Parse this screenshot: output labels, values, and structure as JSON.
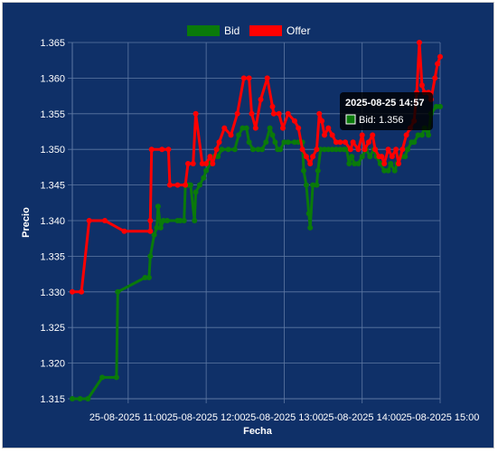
{
  "colors": {
    "background": "#0f3068",
    "grid": "#5e78a3",
    "bid": "#0a7a0a",
    "offer": "#ff0000",
    "text": "#ffffff"
  },
  "chart_data": {
    "type": "line",
    "title": "",
    "xlabel": "Fecha",
    "ylabel": "Precio",
    "grid": true,
    "legend_position": "top-center",
    "x_unit": "time HH:MM on 2025-08-25",
    "x_ticks": [
      "25-08-2025 11:00",
      "25-08-2025 12:00",
      "25-08-2025 13:00",
      "25-08-2025 14:00",
      "25-08-2025 15:00"
    ],
    "y_ticks": [
      "1.315",
      "1.320",
      "1.325",
      "1.330",
      "1.335",
      "1.340",
      "1.345",
      "1.350",
      "1.355",
      "1.360",
      "1.365"
    ],
    "xlim": [
      "10:17",
      "15:00"
    ],
    "ylim": [
      1.315,
      1.365
    ],
    "series": [
      {
        "name": "Bid",
        "color": "#0a7a0a",
        "points": [
          [
            "10:17",
            1.315
          ],
          [
            "10:23",
            1.315
          ],
          [
            "10:29",
            1.315
          ],
          [
            "10:40",
            1.318
          ],
          [
            "10:51",
            1.318
          ],
          [
            "10:52",
            1.33
          ],
          [
            "11:13",
            1.332
          ],
          [
            "11:16",
            1.332
          ],
          [
            "11:17",
            1.335
          ],
          [
            "11:20",
            1.338
          ],
          [
            "11:22",
            1.339
          ],
          [
            "11:23",
            1.342
          ],
          [
            "11:25",
            1.339
          ],
          [
            "11:27",
            1.34
          ],
          [
            "11:30",
            1.34
          ],
          [
            "11:38",
            1.34
          ],
          [
            "11:40",
            1.34
          ],
          [
            "11:43",
            1.34
          ],
          [
            "11:44",
            1.345
          ],
          [
            "11:46",
            1.345
          ],
          [
            "11:48",
            1.345
          ],
          [
            "11:51",
            1.34
          ],
          [
            "11:52",
            1.344
          ],
          [
            "11:55",
            1.345
          ],
          [
            "11:58",
            1.346
          ],
          [
            "12:00",
            1.347
          ],
          [
            "12:03",
            1.348
          ],
          [
            "12:06",
            1.349
          ],
          [
            "12:09",
            1.349
          ],
          [
            "12:12",
            1.35
          ],
          [
            "12:17",
            1.35
          ],
          [
            "12:22",
            1.35
          ],
          [
            "12:25",
            1.352
          ],
          [
            "12:28",
            1.353
          ],
          [
            "12:31",
            1.353
          ],
          [
            "12:33",
            1.351
          ],
          [
            "12:36",
            1.35
          ],
          [
            "12:40",
            1.35
          ],
          [
            "12:43",
            1.35
          ],
          [
            "12:46",
            1.351
          ],
          [
            "12:49",
            1.353
          ],
          [
            "12:51",
            1.352
          ],
          [
            "12:53",
            1.351
          ],
          [
            "12:55",
            1.35
          ],
          [
            "12:57",
            1.35
          ],
          [
            "13:00",
            1.351
          ],
          [
            "13:03",
            1.351
          ],
          [
            "13:08",
            1.351
          ],
          [
            "13:11",
            1.351
          ],
          [
            "13:14",
            1.351
          ],
          [
            "13:15",
            1.347
          ],
          [
            "13:17",
            1.345
          ],
          [
            "13:19",
            1.341
          ],
          [
            "13:20",
            1.339
          ],
          [
            "13:22",
            1.345
          ],
          [
            "13:25",
            1.345
          ],
          [
            "13:26",
            1.347
          ],
          [
            "13:28",
            1.35
          ],
          [
            "13:31",
            1.35
          ],
          [
            "13:34",
            1.35
          ],
          [
            "13:37",
            1.35
          ],
          [
            "13:40",
            1.35
          ],
          [
            "13:43",
            1.35
          ],
          [
            "13:46",
            1.35
          ],
          [
            "13:48",
            1.35
          ],
          [
            "13:50",
            1.348
          ],
          [
            "13:52",
            1.349
          ],
          [
            "13:54",
            1.348
          ],
          [
            "13:57",
            1.348
          ],
          [
            "14:00",
            1.349
          ],
          [
            "14:03",
            1.35
          ],
          [
            "14:06",
            1.349
          ],
          [
            "14:09",
            1.35
          ],
          [
            "14:11",
            1.349
          ],
          [
            "14:14",
            1.348
          ],
          [
            "14:17",
            1.347
          ],
          [
            "14:20",
            1.347
          ],
          [
            "14:22",
            1.348
          ],
          [
            "14:25",
            1.347
          ],
          [
            "14:27",
            1.348
          ],
          [
            "14:30",
            1.349
          ],
          [
            "14:33",
            1.349
          ],
          [
            "14:35",
            1.35
          ],
          [
            "14:38",
            1.351
          ],
          [
            "14:40",
            1.351
          ],
          [
            "14:43",
            1.352
          ],
          [
            "14:46",
            1.352
          ],
          [
            "14:48",
            1.353
          ],
          [
            "14:51",
            1.352
          ],
          [
            "14:53",
            1.355
          ],
          [
            "14:57",
            1.356
          ],
          [
            "15:00",
            1.356
          ]
        ]
      },
      {
        "name": "Offer",
        "color": "#ff0000",
        "points": [
          [
            "10:17",
            1.33
          ],
          [
            "10:24",
            1.33
          ],
          [
            "10:30",
            1.34
          ],
          [
            "10:42",
            1.34
          ],
          [
            "10:57",
            1.3385
          ],
          [
            "11:17",
            1.3385
          ],
          [
            "11:17",
            1.34
          ],
          [
            "11:18",
            1.35
          ],
          [
            "11:26",
            1.35
          ],
          [
            "11:31",
            1.35
          ],
          [
            "11:32",
            1.345
          ],
          [
            "11:38",
            1.345
          ],
          [
            "11:44",
            1.345
          ],
          [
            "11:46",
            1.348
          ],
          [
            "11:50",
            1.348
          ],
          [
            "11:52",
            1.355
          ],
          [
            "11:57",
            1.348
          ],
          [
            "12:00",
            1.348
          ],
          [
            "12:03",
            1.349
          ],
          [
            "12:05",
            1.348
          ],
          [
            "12:08",
            1.35
          ],
          [
            "12:10",
            1.351
          ],
          [
            "12:14",
            1.353
          ],
          [
            "12:19",
            1.352
          ],
          [
            "12:24",
            1.355
          ],
          [
            "12:29",
            1.36
          ],
          [
            "12:33",
            1.36
          ],
          [
            "12:35",
            1.355
          ],
          [
            "12:38",
            1.353
          ],
          [
            "12:42",
            1.357
          ],
          [
            "12:47",
            1.36
          ],
          [
            "12:51",
            1.356
          ],
          [
            "12:52",
            1.355
          ],
          [
            "12:56",
            1.355
          ],
          [
            "12:59",
            1.353
          ],
          [
            "13:03",
            1.355
          ],
          [
            "13:08",
            1.354
          ],
          [
            "13:11",
            1.353
          ],
          [
            "13:14",
            1.35
          ],
          [
            "13:17",
            1.349
          ],
          [
            "13:20",
            1.348
          ],
          [
            "13:22",
            1.349
          ],
          [
            "13:25",
            1.35
          ],
          [
            "13:27",
            1.355
          ],
          [
            "13:29",
            1.354
          ],
          [
            "13:31",
            1.352
          ],
          [
            "13:34",
            1.353
          ],
          [
            "13:37",
            1.352
          ],
          [
            "13:40",
            1.351
          ],
          [
            "13:43",
            1.351
          ],
          [
            "13:47",
            1.351
          ],
          [
            "13:51",
            1.35
          ],
          [
            "13:53",
            1.351
          ],
          [
            "13:57",
            1.35
          ],
          [
            "14:00",
            1.352
          ],
          [
            "14:02",
            1.35
          ],
          [
            "14:05",
            1.351
          ],
          [
            "14:08",
            1.352
          ],
          [
            "14:10",
            1.35
          ],
          [
            "14:13",
            1.349
          ],
          [
            "14:15",
            1.349
          ],
          [
            "14:17",
            1.348
          ],
          [
            "14:20",
            1.35
          ],
          [
            "14:23",
            1.349
          ],
          [
            "14:26",
            1.35
          ],
          [
            "14:28",
            1.348
          ],
          [
            "14:31",
            1.35
          ],
          [
            "14:34",
            1.352
          ],
          [
            "14:37",
            1.353
          ],
          [
            "14:40",
            1.354
          ],
          [
            "14:42",
            1.358
          ],
          [
            "14:44",
            1.365
          ],
          [
            "14:46",
            1.359
          ],
          [
            "14:48",
            1.358
          ],
          [
            "14:51",
            1.358
          ],
          [
            "14:53",
            1.357
          ],
          [
            "14:56",
            1.36
          ],
          [
            "14:58",
            1.362
          ],
          [
            "15:00",
            1.363
          ]
        ]
      }
    ]
  },
  "tooltip": {
    "title": "2025-08-25 14:57",
    "series": "Bid",
    "value": "1.356",
    "text": "Bid: 1.356"
  }
}
